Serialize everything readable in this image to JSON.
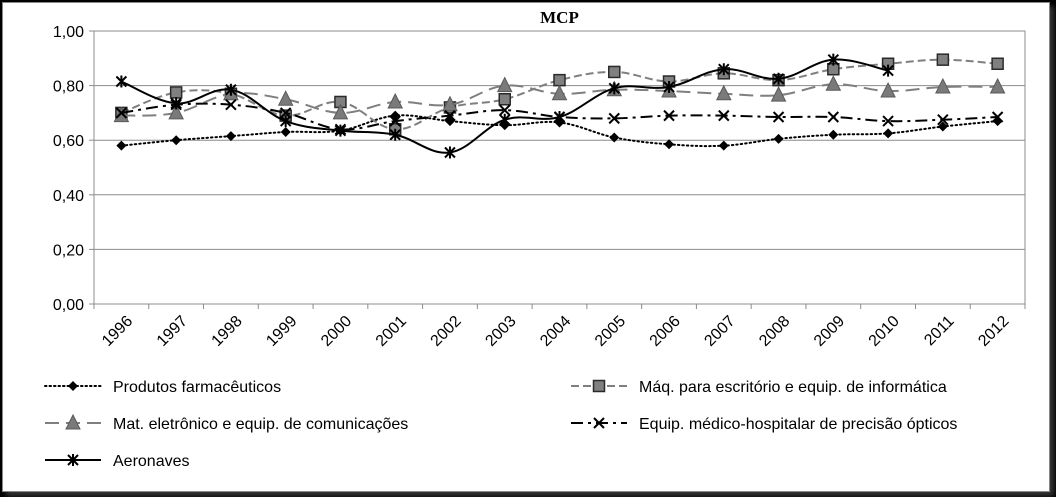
{
  "chart_data": {
    "type": "line",
    "title": "MCP",
    "xlabel": "",
    "ylabel": "",
    "ylim": [
      0,
      1
    ],
    "yticks": [
      "0,00",
      "0,20",
      "0,40",
      "0,60",
      "0,80",
      "1,00"
    ],
    "grid": "horizontal",
    "legend_position": "bottom",
    "categories": [
      "1996",
      "1997",
      "1998",
      "1999",
      "2000",
      "2001",
      "2002",
      "2003",
      "2004",
      "2005",
      "2006",
      "2007",
      "2008",
      "2009",
      "2010",
      "2011",
      "2012"
    ],
    "series": [
      {
        "name": "Produtos farmacêuticos",
        "line_style": "dotted",
        "marker": "diamond",
        "color": "#000000",
        "values": [
          0.58,
          0.6,
          0.615,
          0.63,
          0.635,
          0.69,
          0.67,
          0.655,
          0.665,
          0.61,
          0.585,
          0.58,
          0.605,
          0.62,
          0.625,
          0.65,
          0.67
        ]
      },
      {
        "name": "Máq. para escritório e equip. de informática",
        "line_style": "dashed",
        "marker": "square",
        "color": "#7f7f7f",
        "values": [
          0.7,
          0.775,
          0.77,
          0.69,
          0.74,
          0.64,
          0.72,
          0.75,
          0.82,
          0.85,
          0.815,
          0.845,
          0.82,
          0.86,
          0.88,
          0.895,
          0.88
        ]
      },
      {
        "name": "Mat. eletrônico e equip. de comunicações",
        "line_style": "long-dash",
        "marker": "triangle",
        "color": "#7f7f7f",
        "values": [
          0.69,
          0.7,
          0.77,
          0.75,
          0.7,
          0.74,
          0.73,
          0.8,
          0.77,
          0.785,
          0.78,
          0.77,
          0.765,
          0.805,
          0.78,
          0.795,
          0.795
        ]
      },
      {
        "name": "Equip. médico-hospitalar de  precisão ópticos",
        "line_style": "dash-dot",
        "marker": "x",
        "color": "#000000",
        "values": [
          0.7,
          0.73,
          0.73,
          0.7,
          0.64,
          0.67,
          0.69,
          0.71,
          0.685,
          0.68,
          0.69,
          0.69,
          0.685,
          0.685,
          0.67,
          0.675,
          0.685
        ]
      },
      {
        "name": "Aeronaves",
        "line_style": "solid",
        "marker": "asterisk",
        "color": "#000000",
        "values": [
          0.815,
          0.735,
          0.785,
          0.67,
          0.635,
          0.62,
          0.555,
          0.675,
          0.685,
          0.79,
          0.795,
          0.86,
          0.825,
          0.895,
          0.855,
          null,
          null
        ]
      }
    ]
  }
}
